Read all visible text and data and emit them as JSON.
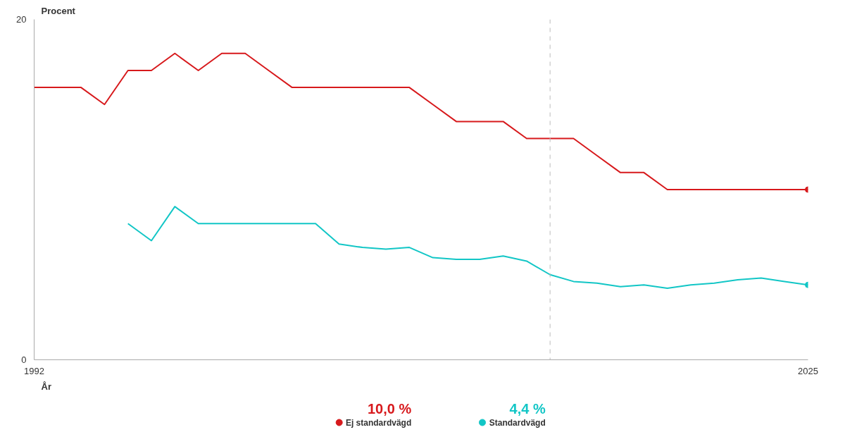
{
  "chart_data": {
    "type": "line",
    "xlabel": "År",
    "ylabel": "Procent",
    "x": [
      1992,
      1993,
      1994,
      1995,
      1996,
      1997,
      1998,
      1999,
      2000,
      2001,
      2002,
      2003,
      2004,
      2005,
      2006,
      2007,
      2008,
      2009,
      2010,
      2011,
      2012,
      2013,
      2014,
      2015,
      2016,
      2017,
      2018,
      2019,
      2020,
      2021,
      2022,
      2023,
      2024,
      2025
    ],
    "series": [
      {
        "name": "Ej standardvägd",
        "color": "#d7191c",
        "values": [
          16,
          16,
          16,
          15,
          17,
          17,
          18,
          17,
          18,
          18,
          17,
          16,
          16,
          16,
          16,
          16,
          16,
          15,
          14,
          14,
          14,
          13,
          13,
          13,
          12,
          11,
          11,
          10,
          10,
          10,
          10,
          10,
          10,
          10
        ]
      },
      {
        "name": "Standardvägd",
        "color": "#12c6c6",
        "values": [
          null,
          null,
          null,
          null,
          8,
          7,
          9,
          8,
          8,
          8,
          8,
          8,
          8,
          6.8,
          6.6,
          6.5,
          6.6,
          6.0,
          5.9,
          5.9,
          6.1,
          5.8,
          5.0,
          4.6,
          4.5,
          4.3,
          4.4,
          4.2,
          4.4,
          4.5,
          4.7,
          4.8,
          4.6,
          4.4
        ]
      }
    ],
    "annotations": [
      "10,0 %",
      "4,4 %"
    ],
    "xlim": [
      1992,
      2025
    ],
    "xticks": [
      1992,
      2025
    ],
    "ylim": [
      0,
      20
    ],
    "yticks": [
      0,
      20
    ],
    "ref_lines": [
      {
        "axis": "x",
        "value": 2014,
        "color": "#bbbbbb",
        "line_style": "dashed"
      }
    ],
    "legend": "bottom",
    "line_style": "solid"
  }
}
